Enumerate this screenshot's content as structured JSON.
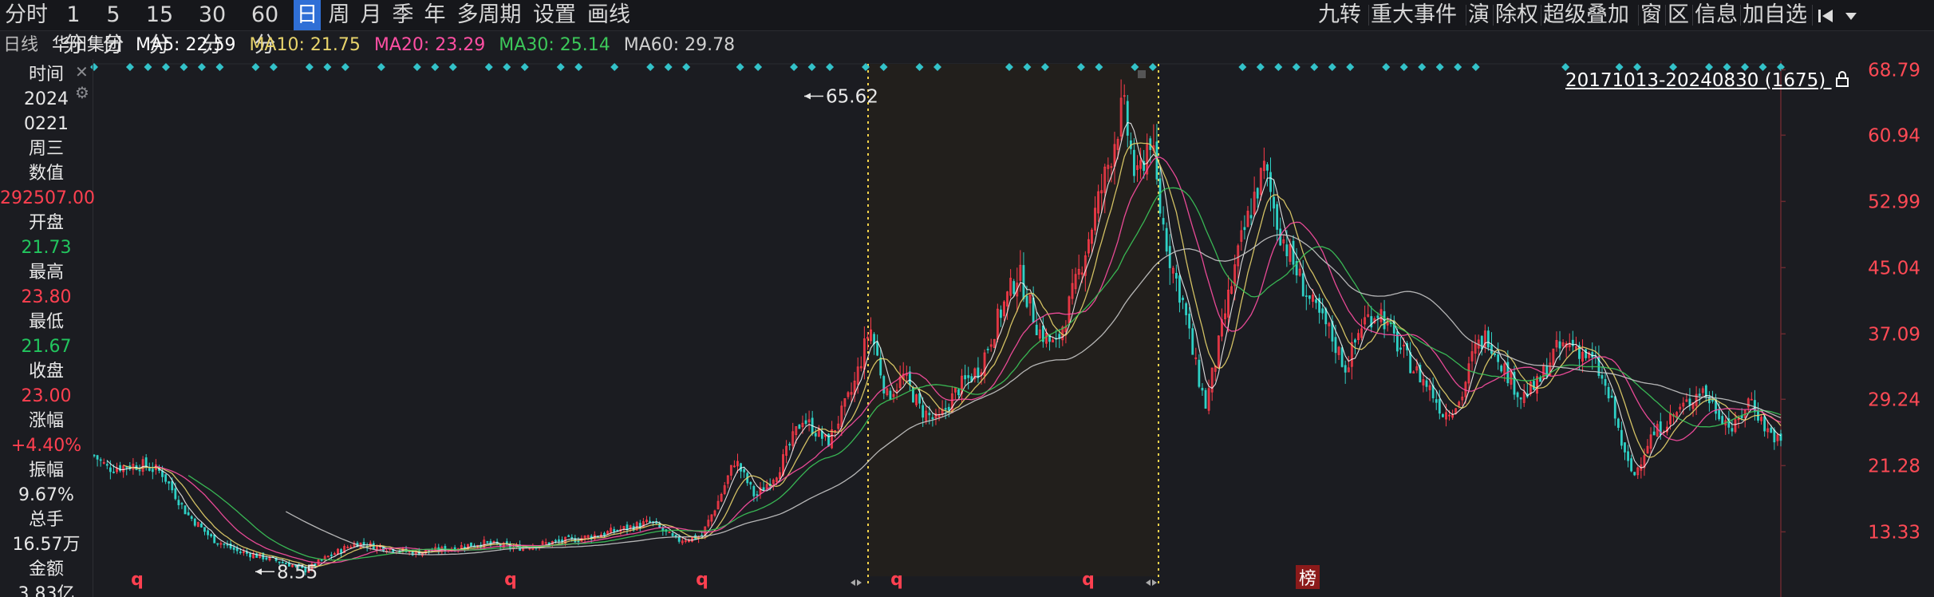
{
  "toolbar": {
    "periods": [
      "分时",
      "1分",
      "5分",
      "15分",
      "30分",
      "60分",
      "日",
      "周",
      "月",
      "季",
      "年",
      "多周期",
      "设置",
      "画线"
    ],
    "active_period": "日",
    "right_tools": [
      "九转",
      "重大事件",
      "演",
      "除权",
      "超级叠加",
      "窗",
      "区",
      "信息",
      "加自选"
    ],
    "first_icon": "skip-first-icon",
    "dropdown_icon": "caret-down-icon"
  },
  "ma_bar": {
    "period_label": "日线",
    "stock_name": "华阳集团",
    "ma5": "MA5: 22.59",
    "ma10": "MA10: 21.75",
    "ma20": "MA20: 23.29",
    "ma30": "MA30: 25.14",
    "ma60": "MA60: 29.78",
    "colors": {
      "ma5": "#ffffff",
      "ma10": "#e7d36b",
      "ma20": "#ff4fa3",
      "ma30": "#3cc85a",
      "ma60": "#c8c8c8"
    }
  },
  "info_panel": {
    "time_label": "时间",
    "year": "2024",
    "date": "0221",
    "weekday": "周三",
    "value_label": "数值",
    "value": "292507.00",
    "open_label": "开盘",
    "open": "21.73",
    "high_label": "最高",
    "high": "23.80",
    "low_label": "最低",
    "low": "21.67",
    "close_label": "收盘",
    "close": "23.00",
    "change_label": "涨幅",
    "change": "+4.40%",
    "amplitude_label": "振幅",
    "amplitude": "9.67%",
    "volume_label": "总手",
    "volume": "16.57万",
    "amount_label": "金额",
    "amount": "3.83亿",
    "close_icon": "close-icon",
    "settings_icon": "gear-icon"
  },
  "chart_data": {
    "type": "candlestick",
    "ylim": [
      8.0,
      69.5
    ],
    "y_ticks": [
      "68.79",
      "60.94",
      "52.99",
      "45.04",
      "37.09",
      "29.24",
      "21.28",
      "13.33"
    ],
    "y_tick_values": [
      68.79,
      60.94,
      52.99,
      45.04,
      37.09,
      29.24,
      21.28,
      13.33
    ],
    "range_label": "20171013-20240830 (1675)",
    "lock_icon": "lock-icon",
    "high_annotation": "65.62",
    "low_annotation": "8.55",
    "high_value": 65.62,
    "low_value": 8.55,
    "bottom_markers": [
      "q",
      "q",
      "q",
      "q",
      "q"
    ],
    "badge_label": "榜",
    "price_path": [
      [
        0.0,
        22.5
      ],
      [
        0.008,
        21.0
      ],
      [
        0.018,
        21.2
      ],
      [
        0.028,
        21.4
      ],
      [
        0.04,
        20.5
      ],
      [
        0.055,
        15.5
      ],
      [
        0.07,
        12.5
      ],
      [
        0.085,
        11.0
      ],
      [
        0.1,
        10.3
      ],
      [
        0.115,
        9.5
      ],
      [
        0.125,
        8.7
      ],
      [
        0.14,
        10.5
      ],
      [
        0.155,
        12.0
      ],
      [
        0.17,
        11.5
      ],
      [
        0.19,
        10.8
      ],
      [
        0.21,
        11.3
      ],
      [
        0.23,
        12.0
      ],
      [
        0.25,
        11.4
      ],
      [
        0.27,
        12.0
      ],
      [
        0.29,
        12.6
      ],
      [
        0.31,
        13.5
      ],
      [
        0.33,
        14.5
      ],
      [
        0.345,
        12.3
      ],
      [
        0.36,
        12.8
      ],
      [
        0.37,
        17.0
      ],
      [
        0.38,
        22.0
      ],
      [
        0.392,
        17.5
      ],
      [
        0.405,
        20.5
      ],
      [
        0.42,
        27.0
      ],
      [
        0.435,
        24.0
      ],
      [
        0.45,
        30.5
      ],
      [
        0.46,
        38.0
      ],
      [
        0.47,
        29.5
      ],
      [
        0.48,
        32.0
      ],
      [
        0.49,
        28.0
      ],
      [
        0.5,
        26.5
      ],
      [
        0.512,
        30.5
      ],
      [
        0.525,
        33.0
      ],
      [
        0.537,
        39.5
      ],
      [
        0.548,
        44.5
      ],
      [
        0.56,
        37.5
      ],
      [
        0.57,
        35.5
      ],
      [
        0.582,
        43.0
      ],
      [
        0.594,
        52.0
      ],
      [
        0.602,
        58.0
      ],
      [
        0.61,
        64.5
      ],
      [
        0.618,
        55.0
      ],
      [
        0.626,
        61.0
      ],
      [
        0.632,
        52.0
      ],
      [
        0.638,
        46.0
      ],
      [
        0.646,
        40.5
      ],
      [
        0.652,
        34.0
      ],
      [
        0.659,
        28.5
      ],
      [
        0.666,
        35.0
      ],
      [
        0.672,
        41.0
      ],
      [
        0.68,
        48.0
      ],
      [
        0.687,
        53.0
      ],
      [
        0.694,
        57.0
      ],
      [
        0.702,
        50.0
      ],
      [
        0.712,
        45.0
      ],
      [
        0.722,
        40.5
      ],
      [
        0.732,
        37.5
      ],
      [
        0.742,
        33.0
      ],
      [
        0.752,
        38.5
      ],
      [
        0.762,
        40.0
      ],
      [
        0.772,
        36.0
      ],
      [
        0.782,
        33.0
      ],
      [
        0.792,
        30.5
      ],
      [
        0.8,
        27.5
      ],
      [
        0.81,
        29.0
      ],
      [
        0.818,
        35.0
      ],
      [
        0.826,
        37.0
      ],
      [
        0.836,
        33.0
      ],
      [
        0.846,
        29.5
      ],
      [
        0.856,
        31.0
      ],
      [
        0.866,
        35.0
      ],
      [
        0.876,
        36.0
      ],
      [
        0.89,
        33.5
      ],
      [
        0.9,
        28.5
      ],
      [
        0.908,
        22.0
      ],
      [
        0.913,
        20.0
      ],
      [
        0.922,
        24.5
      ],
      [
        0.932,
        26.5
      ],
      [
        0.943,
        28.5
      ],
      [
        0.953,
        30.5
      ],
      [
        0.962,
        28.0
      ],
      [
        0.972,
        25.5
      ],
      [
        0.982,
        29.5
      ],
      [
        0.99,
        26.0
      ],
      [
        1.0,
        24.0
      ]
    ],
    "ma_series": [
      {
        "name": "MA5",
        "color": "#ffffff"
      },
      {
        "name": "MA10",
        "color": "#e7d36b"
      },
      {
        "name": "MA20",
        "color": "#ff4fa3"
      },
      {
        "name": "MA30",
        "color": "#3cc85a"
      },
      {
        "name": "MA60",
        "color": "#c8c8c8"
      }
    ],
    "up_color": "#ff3b4a",
    "down_color": "#2fd1c6",
    "signal_color": "#33c2c9",
    "selection_border_color": "#f2d24b"
  }
}
